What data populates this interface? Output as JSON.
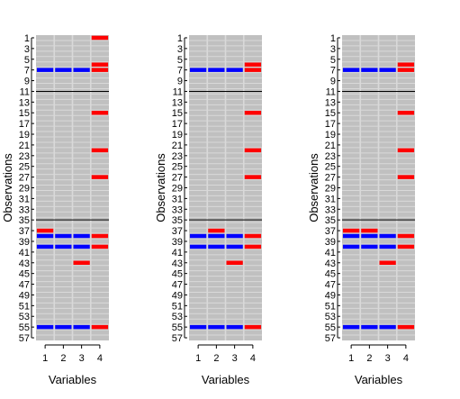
{
  "colors": {
    "background": "#c0c0c0",
    "row_line": "#d9d9d9",
    "col_line": "#d9d9d9",
    "separator": "#000000",
    "blue": "#0000ff",
    "red": "#ff0000"
  },
  "chart_data": [
    {
      "type": "heatmap",
      "xlabel": "Variables",
      "ylabel": "Observations",
      "x_ticks": [
        "1",
        "2",
        "3",
        "4"
      ],
      "y_ticks": [
        "1",
        "3",
        "5",
        "7",
        "9",
        "11",
        "13",
        "15",
        "17",
        "19",
        "21",
        "23",
        "25",
        "27",
        "29",
        "31",
        "33",
        "35",
        "37",
        "39",
        "41",
        "43",
        "45",
        "47",
        "49",
        "51",
        "53",
        "55",
        "57"
      ],
      "ylim": [
        1,
        58
      ],
      "separators": [
        11,
        35
      ],
      "highlights": [
        {
          "obs": 1,
          "var": 4,
          "color": "red"
        },
        {
          "obs": 6,
          "var": 4,
          "color": "red"
        },
        {
          "obs": 7,
          "var": 1,
          "color": "blue"
        },
        {
          "obs": 7,
          "var": 2,
          "color": "blue"
        },
        {
          "obs": 7,
          "var": 3,
          "color": "blue"
        },
        {
          "obs": 7,
          "var": 4,
          "color": "red"
        },
        {
          "obs": 15,
          "var": 4,
          "color": "red"
        },
        {
          "obs": 22,
          "var": 4,
          "color": "red"
        },
        {
          "obs": 27,
          "var": 4,
          "color": "red"
        },
        {
          "obs": 37,
          "var": 1,
          "color": "red"
        },
        {
          "obs": 38,
          "var": 1,
          "color": "blue"
        },
        {
          "obs": 38,
          "var": 2,
          "color": "blue"
        },
        {
          "obs": 38,
          "var": 3,
          "color": "blue"
        },
        {
          "obs": 38,
          "var": 4,
          "color": "red"
        },
        {
          "obs": 40,
          "var": 1,
          "color": "blue"
        },
        {
          "obs": 40,
          "var": 2,
          "color": "blue"
        },
        {
          "obs": 40,
          "var": 3,
          "color": "blue"
        },
        {
          "obs": 40,
          "var": 4,
          "color": "red"
        },
        {
          "obs": 43,
          "var": 3,
          "color": "red"
        },
        {
          "obs": 55,
          "var": 1,
          "color": "blue"
        },
        {
          "obs": 55,
          "var": 2,
          "color": "blue"
        },
        {
          "obs": 55,
          "var": 3,
          "color": "blue"
        },
        {
          "obs": 55,
          "var": 4,
          "color": "red"
        }
      ]
    },
    {
      "type": "heatmap",
      "xlabel": "Variables",
      "ylabel": "Observations",
      "x_ticks": [
        "1",
        "2",
        "3",
        "4"
      ],
      "y_ticks": [
        "1",
        "3",
        "5",
        "7",
        "9",
        "11",
        "13",
        "15",
        "17",
        "19",
        "21",
        "23",
        "25",
        "27",
        "29",
        "31",
        "33",
        "35",
        "37",
        "39",
        "41",
        "43",
        "45",
        "47",
        "49",
        "51",
        "53",
        "55",
        "57"
      ],
      "ylim": [
        1,
        58
      ],
      "separators": [
        11,
        35
      ],
      "highlights": [
        {
          "obs": 6,
          "var": 4,
          "color": "red"
        },
        {
          "obs": 7,
          "var": 1,
          "color": "blue"
        },
        {
          "obs": 7,
          "var": 2,
          "color": "blue"
        },
        {
          "obs": 7,
          "var": 3,
          "color": "blue"
        },
        {
          "obs": 7,
          "var": 4,
          "color": "red"
        },
        {
          "obs": 15,
          "var": 4,
          "color": "red"
        },
        {
          "obs": 22,
          "var": 4,
          "color": "red"
        },
        {
          "obs": 27,
          "var": 4,
          "color": "red"
        },
        {
          "obs": 37,
          "var": 2,
          "color": "red"
        },
        {
          "obs": 38,
          "var": 1,
          "color": "blue"
        },
        {
          "obs": 38,
          "var": 2,
          "color": "blue"
        },
        {
          "obs": 38,
          "var": 3,
          "color": "blue"
        },
        {
          "obs": 38,
          "var": 4,
          "color": "red"
        },
        {
          "obs": 40,
          "var": 1,
          "color": "blue"
        },
        {
          "obs": 40,
          "var": 2,
          "color": "blue"
        },
        {
          "obs": 40,
          "var": 3,
          "color": "blue"
        },
        {
          "obs": 40,
          "var": 4,
          "color": "red"
        },
        {
          "obs": 43,
          "var": 3,
          "color": "red"
        },
        {
          "obs": 55,
          "var": 1,
          "color": "blue"
        },
        {
          "obs": 55,
          "var": 2,
          "color": "blue"
        },
        {
          "obs": 55,
          "var": 3,
          "color": "blue"
        },
        {
          "obs": 55,
          "var": 4,
          "color": "red"
        }
      ]
    },
    {
      "type": "heatmap",
      "xlabel": "Variables",
      "ylabel": "Observations",
      "x_ticks": [
        "1",
        "2",
        "3",
        "4"
      ],
      "y_ticks": [
        "1",
        "3",
        "5",
        "7",
        "9",
        "11",
        "13",
        "15",
        "17",
        "19",
        "21",
        "23",
        "25",
        "27",
        "29",
        "31",
        "33",
        "35",
        "37",
        "39",
        "41",
        "43",
        "45",
        "47",
        "49",
        "51",
        "53",
        "55",
        "57"
      ],
      "ylim": [
        1,
        58
      ],
      "separators": [
        11,
        35
      ],
      "highlights": [
        {
          "obs": 6,
          "var": 4,
          "color": "red"
        },
        {
          "obs": 7,
          "var": 1,
          "color": "blue"
        },
        {
          "obs": 7,
          "var": 2,
          "color": "blue"
        },
        {
          "obs": 7,
          "var": 3,
          "color": "blue"
        },
        {
          "obs": 7,
          "var": 4,
          "color": "red"
        },
        {
          "obs": 15,
          "var": 4,
          "color": "red"
        },
        {
          "obs": 22,
          "var": 4,
          "color": "red"
        },
        {
          "obs": 27,
          "var": 4,
          "color": "red"
        },
        {
          "obs": 37,
          "var": 1,
          "color": "red"
        },
        {
          "obs": 37,
          "var": 2,
          "color": "red"
        },
        {
          "obs": 38,
          "var": 1,
          "color": "blue"
        },
        {
          "obs": 38,
          "var": 2,
          "color": "blue"
        },
        {
          "obs": 38,
          "var": 3,
          "color": "blue"
        },
        {
          "obs": 38,
          "var": 4,
          "color": "red"
        },
        {
          "obs": 40,
          "var": 1,
          "color": "blue"
        },
        {
          "obs": 40,
          "var": 2,
          "color": "blue"
        },
        {
          "obs": 40,
          "var": 3,
          "color": "blue"
        },
        {
          "obs": 40,
          "var": 4,
          "color": "red"
        },
        {
          "obs": 43,
          "var": 3,
          "color": "red"
        },
        {
          "obs": 55,
          "var": 1,
          "color": "blue"
        },
        {
          "obs": 55,
          "var": 2,
          "color": "blue"
        },
        {
          "obs": 55,
          "var": 3,
          "color": "blue"
        },
        {
          "obs": 55,
          "var": 4,
          "color": "red"
        }
      ]
    }
  ]
}
